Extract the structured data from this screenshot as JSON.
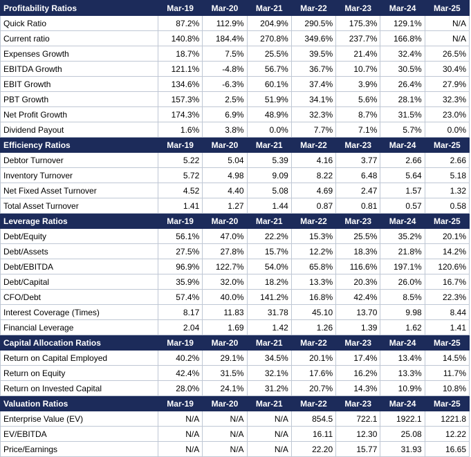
{
  "columns": [
    "Mar-19",
    "Mar-20",
    "Mar-21",
    "Mar-22",
    "Mar-23",
    "Mar-24",
    "Mar-25"
  ],
  "sections": [
    {
      "title": "Profitability Ratios",
      "rows": [
        {
          "label": "Quick Ratio",
          "values": [
            "87.2%",
            "112.9%",
            "204.9%",
            "290.5%",
            "175.3%",
            "129.1%",
            "N/A"
          ]
        },
        {
          "label": "Current ratio",
          "values": [
            "140.8%",
            "184.4%",
            "270.8%",
            "349.6%",
            "237.7%",
            "166.8%",
            "N/A"
          ]
        },
        {
          "label": "Expenses Growth",
          "values": [
            "18.7%",
            "7.5%",
            "25.5%",
            "39.5%",
            "21.4%",
            "32.4%",
            "26.5%"
          ]
        },
        {
          "label": "EBITDA Growth",
          "values": [
            "121.1%",
            "-4.8%",
            "56.7%",
            "36.7%",
            "10.7%",
            "30.5%",
            "30.4%"
          ]
        },
        {
          "label": "EBIT Growth",
          "values": [
            "134.6%",
            "-6.3%",
            "60.1%",
            "37.4%",
            "3.9%",
            "26.4%",
            "27.9%"
          ]
        },
        {
          "label": "PBT Growth",
          "values": [
            "157.3%",
            "2.5%",
            "51.9%",
            "34.1%",
            "5.6%",
            "28.1%",
            "32.3%"
          ]
        },
        {
          "label": "Net Profit Growth",
          "values": [
            "174.3%",
            "6.9%",
            "48.9%",
            "32.3%",
            "8.7%",
            "31.5%",
            "23.0%"
          ]
        },
        {
          "label": "Dividend Payout",
          "values": [
            "1.6%",
            "3.8%",
            "0.0%",
            "7.7%",
            "7.1%",
            "5.7%",
            "0.0%"
          ]
        }
      ]
    },
    {
      "title": "Efficiency Ratios",
      "rows": [
        {
          "label": "Debtor Turnover",
          "values": [
            "5.22",
            "5.04",
            "5.39",
            "4.16",
            "3.77",
            "2.66",
            "2.66"
          ]
        },
        {
          "label": "Inventory Turnover",
          "values": [
            "5.72",
            "4.98",
            "9.09",
            "8.22",
            "6.48",
            "5.64",
            "5.18"
          ]
        },
        {
          "label": "Net Fixed Asset Turnover",
          "values": [
            "4.52",
            "4.40",
            "5.08",
            "4.69",
            "2.47",
            "1.57",
            "1.32"
          ]
        },
        {
          "label": "Total Asset Turnover",
          "values": [
            "1.41",
            "1.27",
            "1.44",
            "0.87",
            "0.81",
            "0.57",
            "0.58"
          ]
        }
      ]
    },
    {
      "title": "Leverage Ratios",
      "rows": [
        {
          "label": "Debt/Equity",
          "values": [
            "56.1%",
            "47.0%",
            "22.2%",
            "15.3%",
            "25.5%",
            "35.2%",
            "20.1%"
          ]
        },
        {
          "label": "Debt/Assets",
          "values": [
            "27.5%",
            "27.8%",
            "15.7%",
            "12.2%",
            "18.3%",
            "21.8%",
            "14.2%"
          ]
        },
        {
          "label": "Debt/EBITDA",
          "values": [
            "96.9%",
            "122.7%",
            "54.0%",
            "65.8%",
            "116.6%",
            "197.1%",
            "120.6%"
          ]
        },
        {
          "label": "Debt/Capital",
          "values": [
            "35.9%",
            "32.0%",
            "18.2%",
            "13.3%",
            "20.3%",
            "26.0%",
            "16.7%"
          ]
        },
        {
          "label": "CFO/Debt",
          "values": [
            "57.4%",
            "40.0%",
            "141.2%",
            "16.8%",
            "42.4%",
            "8.5%",
            "22.3%"
          ]
        },
        {
          "label": "Interest Coverage (Times)",
          "values": [
            "8.17",
            "11.83",
            "31.78",
            "45.10",
            "13.70",
            "9.98",
            "8.44"
          ]
        },
        {
          "label": "Financial Leverage",
          "values": [
            "2.04",
            "1.69",
            "1.42",
            "1.26",
            "1.39",
            "1.62",
            "1.41"
          ]
        }
      ]
    },
    {
      "title": "Capital Allocation Ratios",
      "rows": [
        {
          "label": "Return on Capital Employed",
          "values": [
            "40.2%",
            "29.1%",
            "34.5%",
            "20.1%",
            "17.4%",
            "13.4%",
            "14.5%"
          ]
        },
        {
          "label": "Return on Equity",
          "values": [
            "42.4%",
            "31.5%",
            "32.1%",
            "17.6%",
            "16.2%",
            "13.3%",
            "11.7%"
          ]
        },
        {
          "label": "Return on Invested Capital",
          "values": [
            "28.0%",
            "24.1%",
            "31.2%",
            "20.7%",
            "14.3%",
            "10.9%",
            "10.8%"
          ]
        }
      ]
    },
    {
      "title": "Valuation Ratios",
      "rows": [
        {
          "label": "Enterprise Value (EV)",
          "values": [
            "N/A",
            "N/A",
            "N/A",
            "854.5",
            "722.1",
            "1922.1",
            "1221.8"
          ]
        },
        {
          "label": "EV/EBITDA",
          "values": [
            "N/A",
            "N/A",
            "N/A",
            "16.11",
            "12.30",
            "25.08",
            "12.22"
          ]
        },
        {
          "label": "Price/Earnings",
          "values": [
            "N/A",
            "N/A",
            "N/A",
            "22.20",
            "15.77",
            "31.93",
            "16.65"
          ]
        }
      ]
    }
  ]
}
